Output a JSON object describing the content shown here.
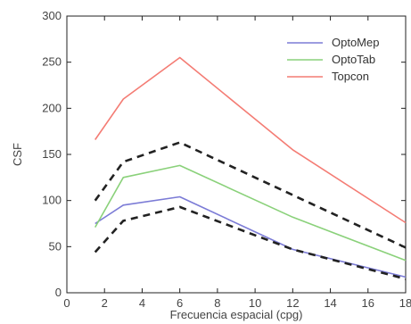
{
  "chart_data": {
    "type": "line",
    "title": "",
    "xlabel": "Frecuencia espacial (cpg)",
    "ylabel": "CSF",
    "xlim": [
      0,
      18
    ],
    "ylim": [
      0,
      300
    ],
    "xticks": [
      0,
      2,
      4,
      6,
      8,
      10,
      12,
      14,
      16,
      18
    ],
    "yticks": [
      0,
      50,
      100,
      150,
      200,
      250,
      300
    ],
    "grid": false,
    "legend_position": "top-right",
    "series": [
      {
        "name": "OptoMep",
        "color": "#7b7bd6",
        "dash": "",
        "legend": true,
        "x": [
          1.5,
          3,
          6,
          12,
          18
        ],
        "y": [
          75,
          95,
          104,
          47,
          17
        ]
      },
      {
        "name": "OptoTab",
        "color": "#8ad17a",
        "dash": "",
        "legend": true,
        "x": [
          1.5,
          3,
          6,
          12,
          18
        ],
        "y": [
          71,
          125,
          138,
          82,
          35
        ]
      },
      {
        "name": "Topcon",
        "color": "#f47c74",
        "dash": "",
        "legend": true,
        "x": [
          1.5,
          3,
          6,
          12,
          18
        ],
        "y": [
          166,
          210,
          255,
          155,
          76
        ]
      },
      {
        "name": "",
        "color": "#222222",
        "dash": "8,6",
        "legend": false,
        "x": [
          1.5,
          3,
          6,
          12,
          18
        ],
        "y": [
          100,
          142,
          163,
          106,
          49
        ]
      },
      {
        "name": "",
        "color": "#222222",
        "dash": "8,6",
        "legend": false,
        "x": [
          1.5,
          3,
          6,
          12,
          18
        ],
        "y": [
          44,
          78,
          93,
          47,
          15
        ]
      }
    ]
  }
}
